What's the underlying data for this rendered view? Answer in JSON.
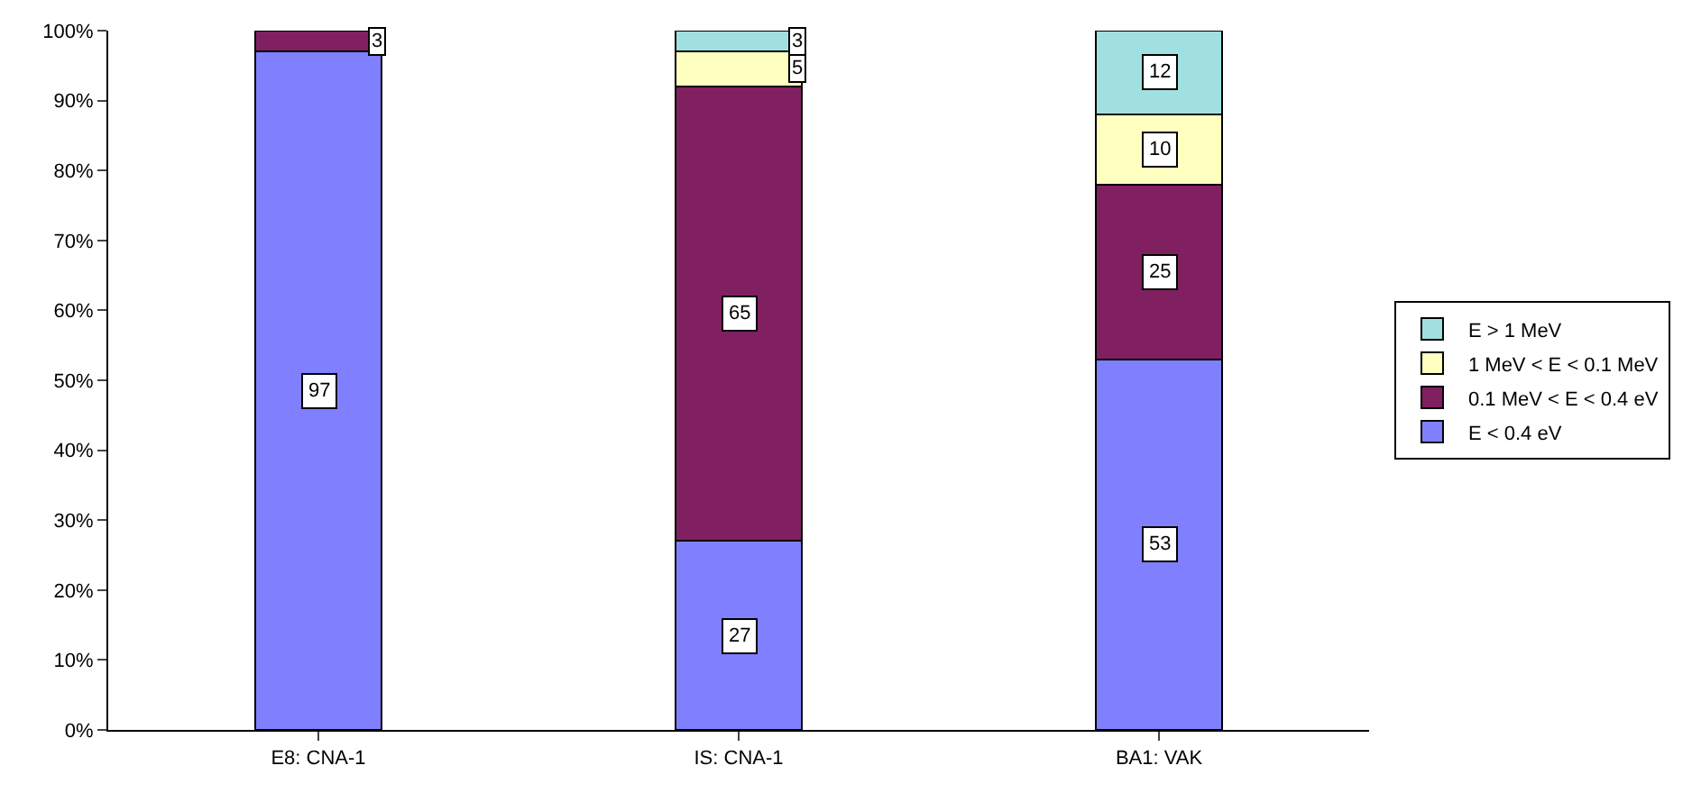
{
  "chart_data": {
    "type": "bar",
    "stacked": true,
    "categories": [
      "E8: CNA-1",
      "IS: CNA-1",
      "BA1: VAK"
    ],
    "series": [
      {
        "name": "E < 0.4 eV",
        "color": "#8080ff",
        "values": [
          97,
          27,
          53
        ],
        "value_labels": [
          "97",
          "27",
          "53"
        ]
      },
      {
        "name": "0.1 MeV < E < 0.4 eV",
        "color": "#802060",
        "values": [
          3,
          65,
          25
        ],
        "value_labels": [
          "3",
          "65",
          "25"
        ]
      },
      {
        "name": "1 MeV < E < 0.1 MeV",
        "color": "#ffffc0",
        "values": [
          null,
          5,
          10
        ],
        "value_labels": [
          null,
          "5",
          "10"
        ]
      },
      {
        "name": "E > 1 MeV",
        "color": "#a0e0e0",
        "values": [
          null,
          3,
          12
        ],
        "value_labels": [
          null,
          "3",
          "12"
        ]
      }
    ],
    "ylim": [
      0,
      100
    ],
    "yticks": [
      {
        "value": 0,
        "label": "0%"
      },
      {
        "value": 10,
        "label": "10%"
      },
      {
        "value": 20,
        "label": "20%"
      },
      {
        "value": 30,
        "label": "30%"
      },
      {
        "value": 40,
        "label": "40%"
      },
      {
        "value": 50,
        "label": "50%"
      },
      {
        "value": 60,
        "label": "60%"
      },
      {
        "value": 70,
        "label": "70%"
      },
      {
        "value": 80,
        "label": "80%"
      },
      {
        "value": 90,
        "label": "90%"
      },
      {
        "value": 100,
        "label": "100%"
      }
    ],
    "legend": "right"
  }
}
